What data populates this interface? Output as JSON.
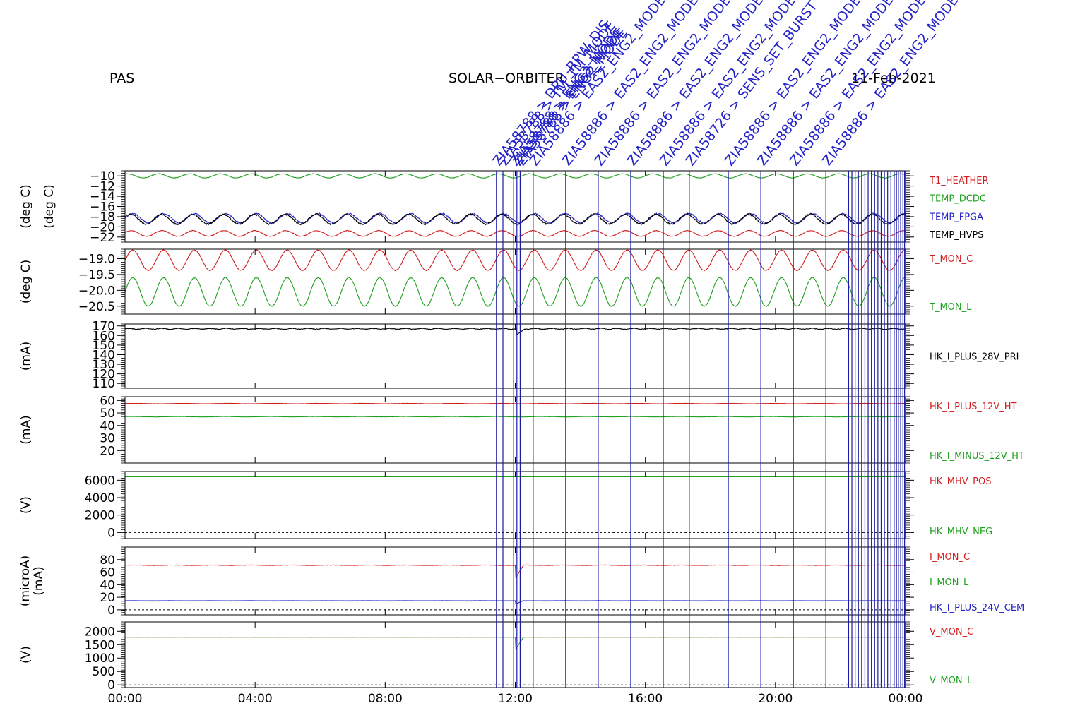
{
  "header": {
    "instrument": "PAS",
    "mission": "SOLAR−ORBITER",
    "date": "11-Feb-2021"
  },
  "colors": {
    "red": "#d21e1e",
    "green": "#1ea01e",
    "blue": "#2323c8",
    "black": "#000000",
    "event": "#1a1aa6"
  },
  "chart_data": {
    "type": "line",
    "x_axis": {
      "range_hours": [
        0,
        24
      ],
      "tick_labels": [
        "00:00",
        "04:00",
        "08:00",
        "12:00",
        "16:00",
        "20:00",
        "00:00"
      ]
    },
    "events": {
      "times_hours": [
        11.42,
        11.62,
        11.95,
        12.05,
        12.15,
        12.55,
        13.55,
        14.55,
        15.55,
        16.55,
        17.35,
        18.55,
        19.55,
        20.55,
        21.55,
        22.25,
        22.35,
        22.45,
        22.55,
        22.65,
        22.75,
        22.85,
        22.95,
        23.05,
        23.15,
        23.25,
        23.35,
        23.45,
        23.55,
        23.65,
        23.72,
        23.78,
        23.85,
        23.92,
        23.97
      ],
      "labels": [
        "ZIA58788 > DPU_RPW_DIS",
        "ZIA58788 > TM_TM_MODE",
        "ZIA58788 > ENG2_MODE",
        "ZIA58788 > ENG2_MODE",
        "ZIA58788 > ENG2_MODE",
        "ZIA58886 > EAS2_ENG2_MODE",
        "ZIA58886 > EAS2_ENG2_MODE",
        "ZIA58886 > EAS2_ENG2_MODE",
        "ZIA58886 > EAS2_ENG2_MODE",
        "ZIA58886 > EAS2_ENG2_MODE",
        "ZIA58726 > SENS_SET_BURST",
        "ZIA58886 > EAS2_ENG2_MODE",
        "ZIA58886 > EAS2_ENG2_MODE",
        "ZIA58886 > EAS2_ENG2_MODE",
        "ZIA58886 > EAS2_ENG2_MODE"
      ]
    },
    "panels": [
      {
        "ylabel": "(deg C)",
        "ylim": [
          -23,
          -9
        ],
        "yticks": [
          -10,
          -12,
          -14,
          -16,
          -18,
          -20,
          -22
        ],
        "series": [
          {
            "name": "T1_HEATHER",
            "color": "#d21e1e",
            "mean": -21.3,
            "amp": 0.55,
            "period_h": 0.95,
            "phase": 0.3,
            "noise": 0.05
          },
          {
            "name": "TEMP_DCDC",
            "color": "#1ea01e",
            "mean": -10.0,
            "amp": 0.4,
            "period_h": 0.95,
            "phase": 1.0,
            "noise": 0.04
          },
          {
            "name": "TEMP_FPGA",
            "color": "#2323c8",
            "mean": -18.3,
            "amp": 0.9,
            "period_h": 0.95,
            "phase": 0.0,
            "noise": 0.12
          },
          {
            "name": "TEMP_HVPS",
            "color": "#000000",
            "mean": -18.5,
            "amp": 0.95,
            "period_h": 0.95,
            "phase": 0.4,
            "noise": 0.14
          }
        ]
      },
      {
        "ylabel": "(deg C)",
        "ylim": [
          -20.75,
          -18.7
        ],
        "yticks": [
          -19.0,
          -19.5,
          -20.0,
          -20.5
        ],
        "ytick_labels": [
          "−19.0",
          "−19.5",
          "−20.0",
          "−20.5"
        ],
        "series": [
          {
            "name": "T_MON_C",
            "color": "#d21e1e",
            "mean": -19.05,
            "amp": 0.32,
            "period_h": 0.95,
            "phase": 0.0,
            "noise": 0.01
          },
          {
            "name": "T_MON_L",
            "color": "#1ea01e",
            "mean": -20.05,
            "amp": 0.45,
            "period_h": 0.95,
            "phase": 0.0,
            "noise": 0.01
          }
        ]
      },
      {
        "ylabel": "(mA)",
        "ylim": [
          105,
          172
        ],
        "yticks": [
          110,
          120,
          130,
          140,
          150,
          160,
          170
        ],
        "series": [
          {
            "name": "HK_I_PLUS_28V_PRI",
            "color": "#000000",
            "mean": 167,
            "amp": 0.4,
            "period_h": 0.5,
            "phase": 0,
            "noise": 0.3,
            "dip": {
              "t": 12.05,
              "value": 161
            }
          }
        ]
      },
      {
        "ylabel": "(mA)",
        "ylim": [
          10,
          63
        ],
        "yticks": [
          20,
          30,
          40,
          50,
          60
        ],
        "series": [
          {
            "name": "HK_I_PLUS_12V_HT",
            "color": "#d21e1e",
            "mean": 57.5,
            "amp": 0.15,
            "period_h": 1.4,
            "phase": 0,
            "noise": 0.1
          },
          {
            "name": "HK_I_MINUS_12V_HT",
            "color": "#1ea01e",
            "mean": 47.0,
            "amp": 0.15,
            "period_h": 1.4,
            "phase": 0.5,
            "noise": 0.1
          }
        ]
      },
      {
        "ylabel": "(V)",
        "ylim": [
          -700,
          7000
        ],
        "yticks": [
          0,
          2000,
          4000,
          6000
        ],
        "zero_line": true,
        "series": [
          {
            "name": "HK_MHV_POS",
            "color": "#d21e1e",
            "mean": 6400,
            "amp": 0,
            "period_h": 1,
            "phase": 0,
            "noise": 0
          },
          {
            "name": "HK_MHV_NEG",
            "color": "#1ea01e",
            "mean": 6400,
            "amp": 0,
            "period_h": 1,
            "phase": 0,
            "noise": 5
          }
        ]
      },
      {
        "ylabel": "(microA)",
        "ylabel2": "(mA)",
        "ylim": [
          -8,
          100
        ],
        "yticks": [
          0,
          20,
          40,
          60,
          80
        ],
        "zero_line": true,
        "series": [
          {
            "name": "I_MON_C",
            "color": "#d21e1e",
            "mean": 71,
            "amp": 0.3,
            "period_h": 1.2,
            "phase": 0,
            "noise": 0.3,
            "dip": {
              "t": 12.0,
              "value": 50
            }
          },
          {
            "name": "I_MON_L",
            "color": "#1ea01e",
            "mean": 14,
            "amp": 0.1,
            "period_h": 1.2,
            "phase": 0,
            "noise": 0.1
          },
          {
            "name": "HK_I_PLUS_24V_CEM",
            "color": "#2323c8",
            "mean": 14.5,
            "amp": 0.1,
            "period_h": 1.2,
            "phase": 0.5,
            "noise": 0.1,
            "dip": {
              "t": 12.0,
              "value": 9
            }
          }
        ]
      },
      {
        "ylabel": "(V)",
        "ylim": [
          -100,
          2350
        ],
        "yticks": [
          0,
          500,
          1000,
          1500,
          2000
        ],
        "zero_line": true,
        "series": [
          {
            "name": "V_MON_C",
            "color": "#d21e1e",
            "mean": 1780,
            "amp": 0,
            "period_h": 1,
            "phase": 0,
            "noise": 0
          },
          {
            "name": "V_MON_L",
            "color": "#1ea01e",
            "mean": 1780,
            "amp": 0,
            "period_h": 1,
            "phase": 0,
            "noise": 2,
            "dip": {
              "t": 12.0,
              "value": 1300
            }
          }
        ]
      }
    ]
  }
}
